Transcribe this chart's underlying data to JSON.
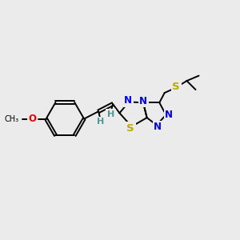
{
  "background_color": "#ebebeb",
  "bond_color": "#000000",
  "atom_colors": {
    "N": "#0000ee",
    "S": "#bbaa00",
    "O": "#ee0000",
    "H": "#4a9999",
    "C": "#000000"
  },
  "figsize": [
    3.0,
    3.0
  ],
  "dpi": 100,
  "bond_lw": 1.4,
  "font_size_atom": 8.5,
  "font_size_label": 7.5
}
